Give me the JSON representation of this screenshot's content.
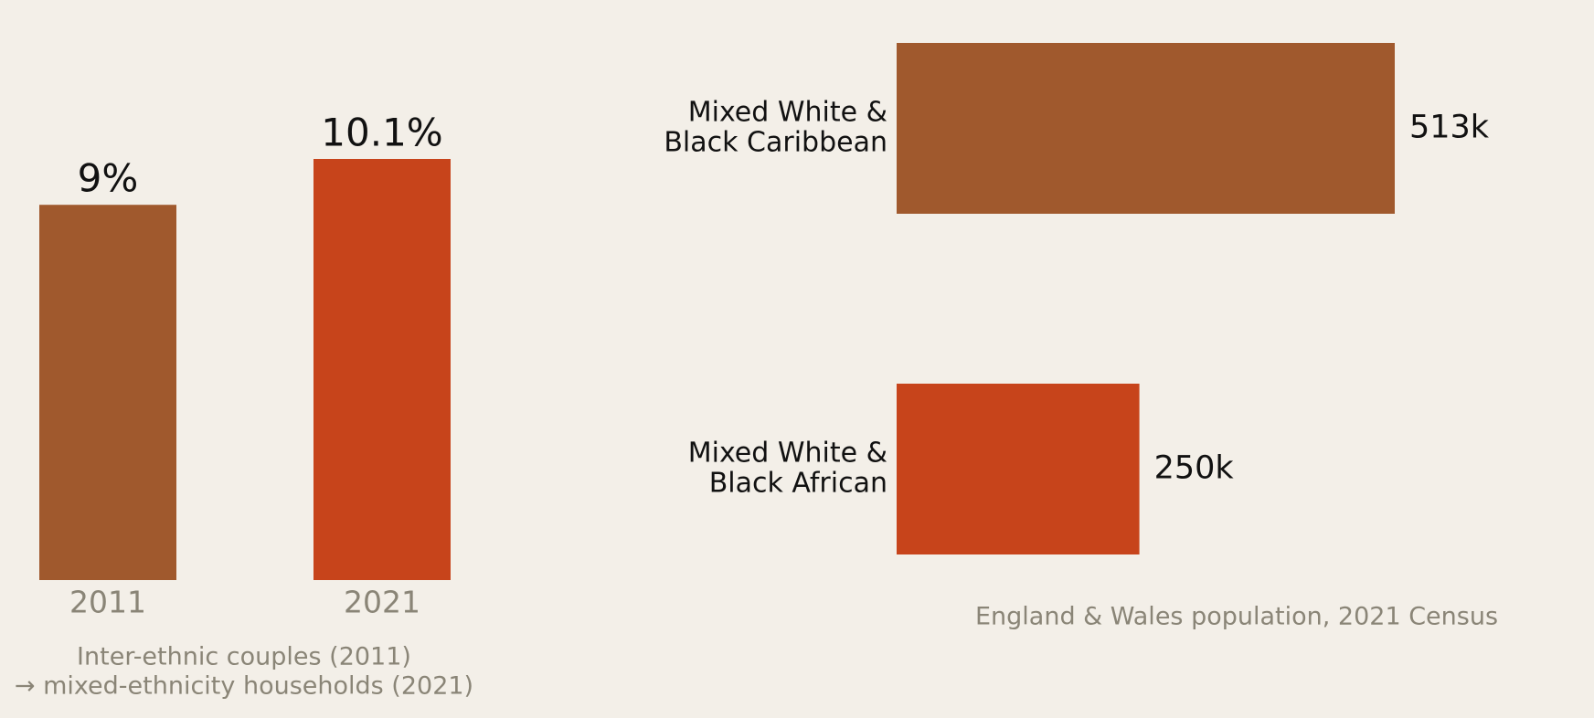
{
  "chart_data": [
    {
      "type": "bar",
      "categories": [
        "2011",
        "2021"
      ],
      "values": [
        9,
        10.1
      ],
      "value_labels": [
        "9%",
        "10.1%"
      ],
      "colors": [
        "#a0592d",
        "#c7441b"
      ],
      "xlabel": [
        "Inter-ethnic couples (2011)",
        "→ mixed-ethnicity households (2021)"
      ]
    },
    {
      "type": "barh",
      "categories": [
        [
          "Mixed White &",
          "Black Caribbean"
        ],
        [
          "Mixed White &",
          "Black African"
        ]
      ],
      "values": [
        513000,
        250000
      ],
      "value_labels": [
        "513k",
        "250k"
      ],
      "colors": [
        "#a0592d",
        "#c7441b"
      ],
      "xlabel": "England & Wales population, 2021 Census"
    }
  ]
}
